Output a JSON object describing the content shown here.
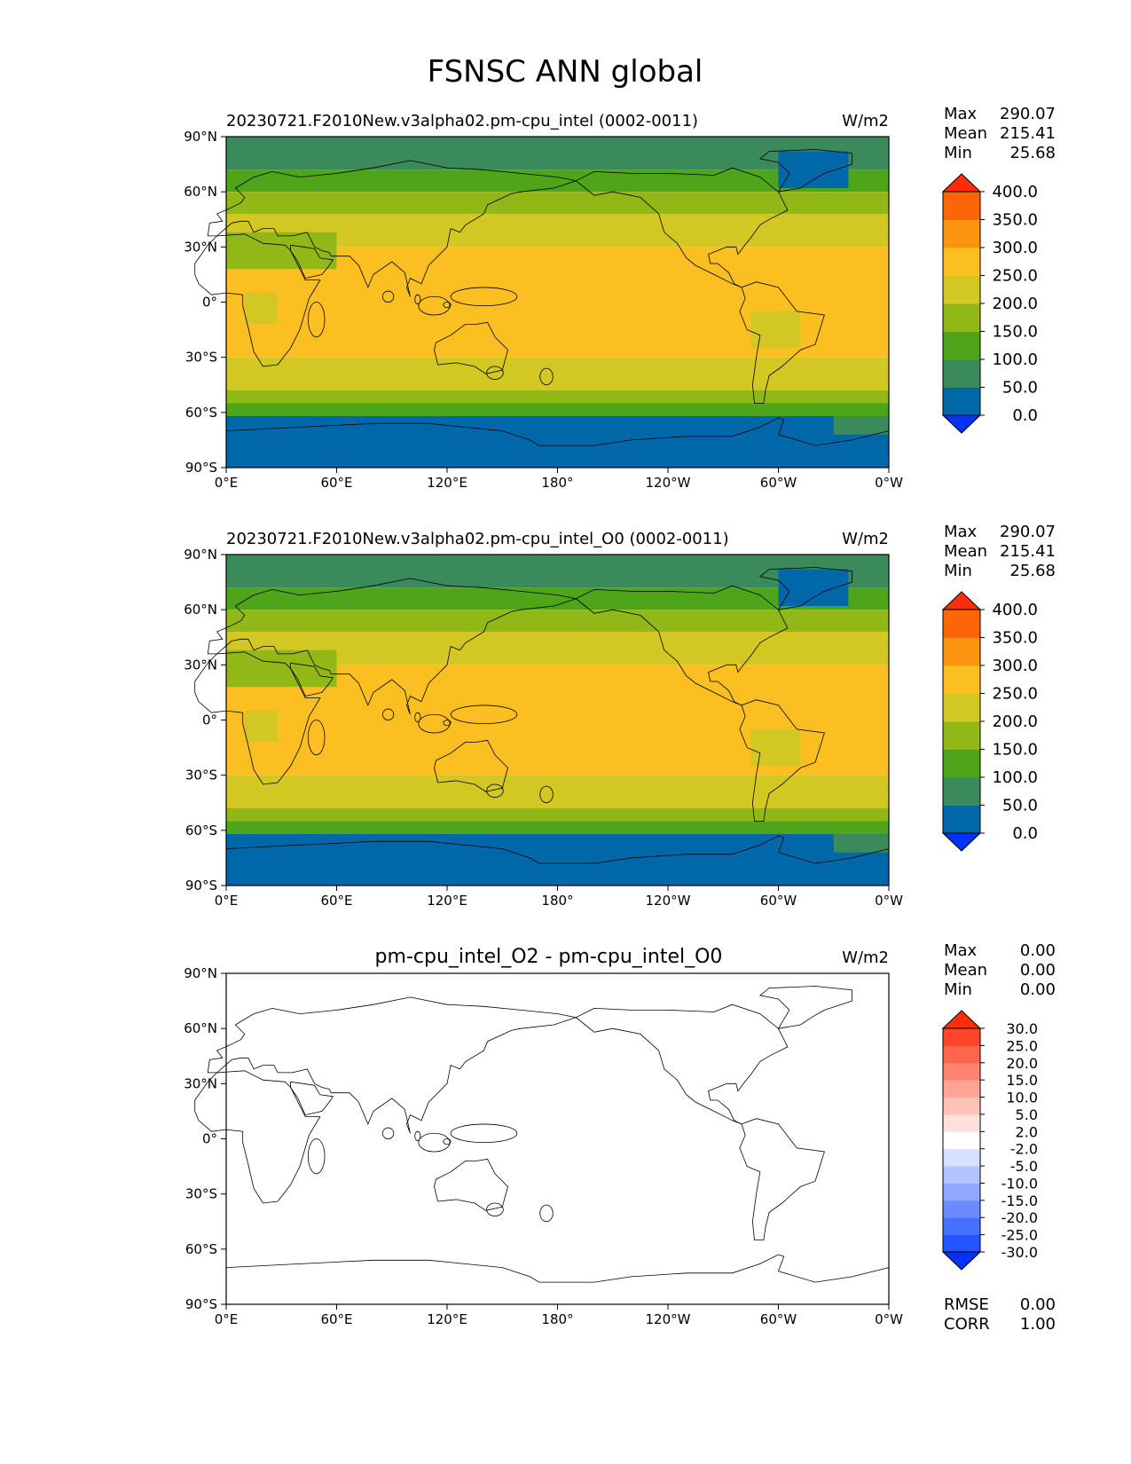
{
  "figure_title": "FSNSC ANN global",
  "chart_data": [
    {
      "type": "heatmap",
      "title": "20230721.F2010New.v3alpha02.pm-cpu_intel (0002-0011)",
      "units": "W/m2",
      "stats": {
        "max_label": "Max",
        "max": "290.07",
        "mean_label": "Mean",
        "mean": "215.41",
        "min_label": "Min",
        "min": "25.68"
      },
      "x_ticks": [
        "0°E",
        "60°E",
        "120°E",
        "180°",
        "120°W",
        "60°W",
        "0°W"
      ],
      "y_ticks": [
        "90°N",
        "60°N",
        "30°N",
        "0°",
        "30°S",
        "60°S",
        "90°S"
      ],
      "xlim": [
        0,
        360
      ],
      "ylim": [
        -90,
        90
      ],
      "colorbar": {
        "levels": [
          "0.0",
          "50.0",
          "100.0",
          "150.0",
          "200.0",
          "250.0",
          "300.0",
          "350.0",
          "400.0"
        ],
        "colors": [
          "#0033ff",
          "#0068a8",
          "#3b8a5c",
          "#4ea519",
          "#92b817",
          "#d2c723",
          "#fbbf21",
          "#fb9510",
          "#fc6508",
          "#ff2d0a"
        ]
      },
      "latitude_bands": [
        {
          "lat_range": [
            72,
            90
          ],
          "level": 2
        },
        {
          "lat_range": [
            60,
            72
          ],
          "level": 3
        },
        {
          "lat_range": [
            48,
            60
          ],
          "level": 4
        },
        {
          "lat_range": [
            30,
            48
          ],
          "level": 5
        },
        {
          "lat_range": [
            -30,
            30
          ],
          "level": 6
        },
        {
          "lat_range": [
            -48,
            -30
          ],
          "level": 5
        },
        {
          "lat_range": [
            -55,
            -48
          ],
          "level": 4
        },
        {
          "lat_range": [
            -62,
            -55
          ],
          "level": 3
        },
        {
          "lat_range": [
            -90,
            -62
          ],
          "level": 1
        }
      ]
    },
    {
      "type": "heatmap",
      "title": "20230721.F2010New.v3alpha02.pm-cpu_intel_O0 (0002-0011)",
      "units": "W/m2",
      "stats": {
        "max_label": "Max",
        "max": "290.07",
        "mean_label": "Mean",
        "mean": "215.41",
        "min_label": "Min",
        "min": "25.68"
      },
      "x_ticks": [
        "0°E",
        "60°E",
        "120°E",
        "180°",
        "120°W",
        "60°W",
        "0°W"
      ],
      "y_ticks": [
        "90°N",
        "60°N",
        "30°N",
        "0°",
        "30°S",
        "60°S",
        "90°S"
      ],
      "xlim": [
        0,
        360
      ],
      "ylim": [
        -90,
        90
      ],
      "colorbar": {
        "levels": [
          "0.0",
          "50.0",
          "100.0",
          "150.0",
          "200.0",
          "250.0",
          "300.0",
          "350.0",
          "400.0"
        ],
        "colors": [
          "#0033ff",
          "#0068a8",
          "#3b8a5c",
          "#4ea519",
          "#92b817",
          "#d2c723",
          "#fbbf21",
          "#fb9510",
          "#fc6508",
          "#ff2d0a"
        ]
      },
      "latitude_bands": [
        {
          "lat_range": [
            72,
            90
          ],
          "level": 2
        },
        {
          "lat_range": [
            60,
            72
          ],
          "level": 3
        },
        {
          "lat_range": [
            48,
            60
          ],
          "level": 4
        },
        {
          "lat_range": [
            30,
            48
          ],
          "level": 5
        },
        {
          "lat_range": [
            -30,
            30
          ],
          "level": 6
        },
        {
          "lat_range": [
            -48,
            -30
          ],
          "level": 5
        },
        {
          "lat_range": [
            -55,
            -48
          ],
          "level": 4
        },
        {
          "lat_range": [
            -62,
            -55
          ],
          "level": 3
        },
        {
          "lat_range": [
            -90,
            -62
          ],
          "level": 1
        }
      ]
    },
    {
      "type": "heatmap",
      "title": "pm-cpu_intel_O2 - pm-cpu_intel_O0",
      "units": "W/m2",
      "stats": {
        "max_label": "Max",
        "max": "0.00",
        "mean_label": "Mean",
        "mean": "0.00",
        "min_label": "Min",
        "min": "0.00"
      },
      "extra_stats": {
        "rmse_label": "RMSE",
        "rmse": "0.00",
        "corr_label": "CORR",
        "corr": "1.00"
      },
      "x_ticks": [
        "0°E",
        "60°E",
        "120°E",
        "180°",
        "120°W",
        "60°W",
        "0°W"
      ],
      "y_ticks": [
        "90°N",
        "60°N",
        "30°N",
        "0°",
        "30°S",
        "60°S",
        "90°S"
      ],
      "xlim": [
        0,
        360
      ],
      "ylim": [
        -90,
        90
      ],
      "colorbar": {
        "levels": [
          "-30.0",
          "-25.0",
          "-20.0",
          "-15.0",
          "-10.0",
          "-5.0",
          "-2.0",
          "2.0",
          "5.0",
          "10.0",
          "15.0",
          "20.0",
          "25.0",
          "30.0"
        ],
        "colors": [
          "#0033ff",
          "#2255ff",
          "#4670ff",
          "#6a8cff",
          "#8ea7ff",
          "#b2c3ff",
          "#d6e0ff",
          "#ffffff",
          "#ffe0dc",
          "#ffc2b8",
          "#ffa394",
          "#ff8470",
          "#ff654c",
          "#ff4628",
          "#ff2d0a"
        ]
      },
      "latitude_bands": []
    }
  ]
}
